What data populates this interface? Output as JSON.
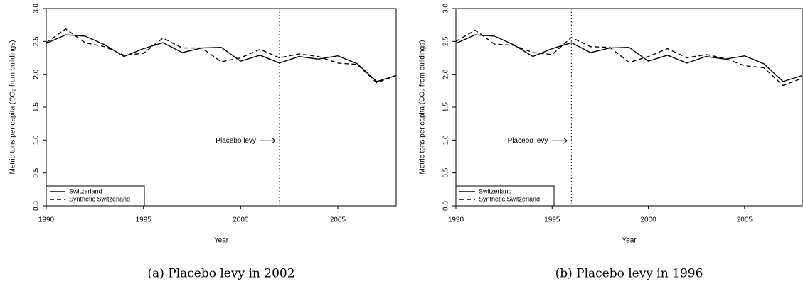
{
  "chart_data": [
    {
      "type": "line",
      "caption": "(a) Placebo levy in 2002",
      "xlabel": "Year",
      "ylabel": "Metric tons per capita (CO₂ from buildings)",
      "x": [
        1990,
        1991,
        1992,
        1993,
        1994,
        1995,
        1996,
        1997,
        1998,
        1999,
        2000,
        2001,
        2002,
        2003,
        2004,
        2005,
        2006,
        2007,
        2008
      ],
      "series": [
        {
          "name": "Switzerland",
          "color": "#000000",
          "dash": "solid",
          "values": [
            2.47,
            2.6,
            2.58,
            2.45,
            2.27,
            2.39,
            2.48,
            2.33,
            2.4,
            2.41,
            2.2,
            2.29,
            2.17,
            2.27,
            2.23,
            2.28,
            2.16,
            1.89,
            1.98
          ]
        },
        {
          "name": "Synthetic Switzerland",
          "color": "#000000",
          "dash": "dashed",
          "values": [
            2.48,
            2.69,
            2.48,
            2.42,
            2.29,
            2.32,
            2.55,
            2.4,
            2.4,
            2.19,
            2.25,
            2.38,
            2.25,
            2.31,
            2.27,
            2.17,
            2.15,
            1.87,
            1.98
          ]
        }
      ],
      "xlim": [
        1990,
        2008
      ],
      "xticks": [
        1990,
        1995,
        2000,
        2005
      ],
      "ylim": [
        0,
        3
      ],
      "yticks": [
        {
          "value": 0,
          "label": "0.0"
        },
        0.5,
        {
          "value": 1,
          "label": "1.0"
        },
        1.5,
        {
          "value": 2,
          "label": "2.0"
        },
        2.5,
        {
          "value": 3,
          "label": "3.0"
        }
      ],
      "vline": 2002,
      "annotation": "Placebo levy",
      "legend": "bottom-left"
    },
    {
      "type": "line",
      "caption": "(b) Placebo levy in 1996",
      "xlabel": "Year",
      "ylabel": "Metric tons per capita (CO₂ from buildings)",
      "x": [
        1990,
        1991,
        1992,
        1993,
        1994,
        1995,
        1996,
        1997,
        1998,
        1999,
        2000,
        2001,
        2002,
        2003,
        2004,
        2005,
        2006,
        2007,
        2008
      ],
      "series": [
        {
          "name": "Switzerland",
          "color": "#000000",
          "dash": "solid",
          "values": [
            2.47,
            2.6,
            2.58,
            2.45,
            2.27,
            2.39,
            2.48,
            2.33,
            2.4,
            2.41,
            2.2,
            2.29,
            2.17,
            2.27,
            2.23,
            2.28,
            2.16,
            1.89,
            1.98
          ]
        },
        {
          "name": "Synthetic Switzerland",
          "color": "#000000",
          "dash": "dashed",
          "values": [
            2.5,
            2.67,
            2.46,
            2.44,
            2.33,
            2.3,
            2.56,
            2.42,
            2.41,
            2.18,
            2.27,
            2.39,
            2.25,
            2.3,
            2.24,
            2.13,
            2.1,
            1.83,
            1.94
          ]
        }
      ],
      "xlim": [
        1990,
        2008
      ],
      "xticks": [
        1990,
        1995,
        2000,
        2005
      ],
      "ylim": [
        0,
        3
      ],
      "yticks": [
        {
          "value": 0,
          "label": "0.0"
        },
        0.5,
        {
          "value": 1,
          "label": "1.0"
        },
        1.5,
        {
          "value": 2,
          "label": "2.0"
        },
        2.5,
        {
          "value": 3,
          "label": "3.0"
        }
      ],
      "vline": 1996,
      "annotation": "Placebo levy",
      "legend": "bottom-left"
    }
  ]
}
